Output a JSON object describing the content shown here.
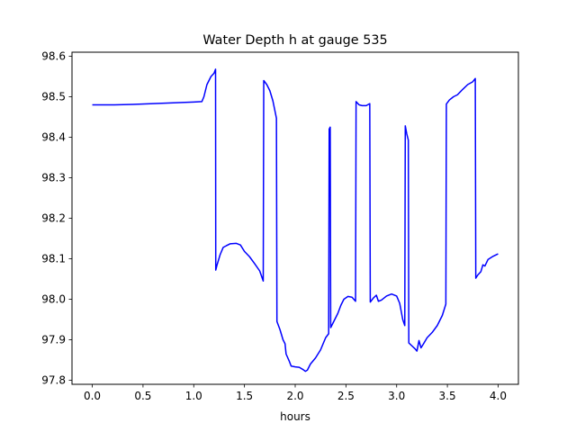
{
  "chart_data": {
    "type": "line",
    "title": "Water Depth h at gauge 535",
    "xlabel": "hours",
    "ylabel": "",
    "xlim": [
      -0.2,
      4.2
    ],
    "ylim": [
      97.79,
      98.61
    ],
    "xticks": [
      0.0,
      0.5,
      1.0,
      1.5,
      2.0,
      2.5,
      3.0,
      3.5,
      4.0
    ],
    "xtick_labels": [
      "0.0",
      "0.5",
      "1.0",
      "1.5",
      "2.0",
      "2.5",
      "3.0",
      "3.5",
      "4.0"
    ],
    "yticks": [
      97.8,
      97.9,
      98.0,
      98.1,
      98.2,
      98.3,
      98.4,
      98.5,
      98.6
    ],
    "ytick_labels": [
      "97.8",
      "97.9",
      "98.0",
      "98.1",
      "98.2",
      "98.3",
      "98.4",
      "98.5",
      "98.6"
    ],
    "grid": false,
    "series": [
      {
        "color": "#0000ff",
        "points": [
          [
            0.0,
            98.48
          ],
          [
            0.2,
            98.48
          ],
          [
            0.4,
            98.481
          ],
          [
            0.6,
            98.483
          ],
          [
            0.8,
            98.485
          ],
          [
            1.0,
            98.487
          ],
          [
            1.08,
            98.488
          ],
          [
            1.1,
            98.5
          ],
          [
            1.13,
            98.53
          ],
          [
            1.17,
            98.55
          ],
          [
            1.2,
            98.558
          ],
          [
            1.215,
            98.568
          ],
          [
            1.217,
            98.072
          ],
          [
            1.23,
            98.085
          ],
          [
            1.26,
            98.11
          ],
          [
            1.29,
            98.128
          ],
          [
            1.32,
            98.132
          ],
          [
            1.36,
            98.137
          ],
          [
            1.42,
            98.138
          ],
          [
            1.46,
            98.134
          ],
          [
            1.5,
            98.118
          ],
          [
            1.55,
            98.105
          ],
          [
            1.6,
            98.088
          ],
          [
            1.65,
            98.07
          ],
          [
            1.685,
            98.045
          ],
          [
            1.69,
            98.54
          ],
          [
            1.72,
            98.53
          ],
          [
            1.75,
            98.515
          ],
          [
            1.78,
            98.49
          ],
          [
            1.815,
            98.447
          ],
          [
            1.82,
            97.945
          ],
          [
            1.85,
            97.925
          ],
          [
            1.88,
            97.9
          ],
          [
            1.9,
            97.89
          ],
          [
            1.91,
            97.865
          ],
          [
            1.94,
            97.848
          ],
          [
            1.96,
            97.835
          ],
          [
            2.0,
            97.833
          ],
          [
            2.04,
            97.832
          ],
          [
            2.08,
            97.826
          ],
          [
            2.1,
            97.822
          ],
          [
            2.12,
            97.825
          ],
          [
            2.15,
            97.84
          ],
          [
            2.2,
            97.855
          ],
          [
            2.25,
            97.875
          ],
          [
            2.3,
            97.905
          ],
          [
            2.33,
            97.915
          ],
          [
            2.335,
            98.42
          ],
          [
            2.345,
            98.425
          ],
          [
            2.35,
            97.93
          ],
          [
            2.38,
            97.945
          ],
          [
            2.42,
            97.965
          ],
          [
            2.45,
            97.985
          ],
          [
            2.48,
            98.0
          ],
          [
            2.52,
            98.007
          ],
          [
            2.56,
            98.005
          ],
          [
            2.595,
            97.995
          ],
          [
            2.6,
            98.488
          ],
          [
            2.63,
            98.48
          ],
          [
            2.66,
            98.478
          ],
          [
            2.7,
            98.478
          ],
          [
            2.735,
            98.483
          ],
          [
            2.74,
            97.993
          ],
          [
            2.77,
            98.003
          ],
          [
            2.8,
            98.01
          ],
          [
            2.82,
            97.995
          ],
          [
            2.85,
            97.998
          ],
          [
            2.9,
            98.008
          ],
          [
            2.95,
            98.013
          ],
          [
            3.0,
            98.008
          ],
          [
            3.03,
            97.99
          ],
          [
            3.06,
            97.95
          ],
          [
            3.08,
            97.935
          ],
          [
            3.085,
            98.428
          ],
          [
            3.1,
            98.408
          ],
          [
            3.115,
            98.393
          ],
          [
            3.12,
            97.892
          ],
          [
            3.15,
            97.885
          ],
          [
            3.18,
            97.878
          ],
          [
            3.2,
            97.872
          ],
          [
            3.22,
            97.898
          ],
          [
            3.24,
            97.88
          ],
          [
            3.26,
            97.888
          ],
          [
            3.3,
            97.905
          ],
          [
            3.35,
            97.918
          ],
          [
            3.4,
            97.935
          ],
          [
            3.45,
            97.96
          ],
          [
            3.485,
            97.988
          ],
          [
            3.49,
            98.482
          ],
          [
            3.52,
            98.492
          ],
          [
            3.56,
            98.5
          ],
          [
            3.6,
            98.505
          ],
          [
            3.65,
            98.518
          ],
          [
            3.7,
            98.53
          ],
          [
            3.75,
            98.537
          ],
          [
            3.775,
            98.545
          ],
          [
            3.78,
            98.052
          ],
          [
            3.8,
            98.06
          ],
          [
            3.83,
            98.068
          ],
          [
            3.85,
            98.085
          ],
          [
            3.87,
            98.082
          ],
          [
            3.9,
            98.098
          ],
          [
            3.95,
            98.106
          ],
          [
            4.0,
            98.112
          ]
        ]
      }
    ]
  }
}
